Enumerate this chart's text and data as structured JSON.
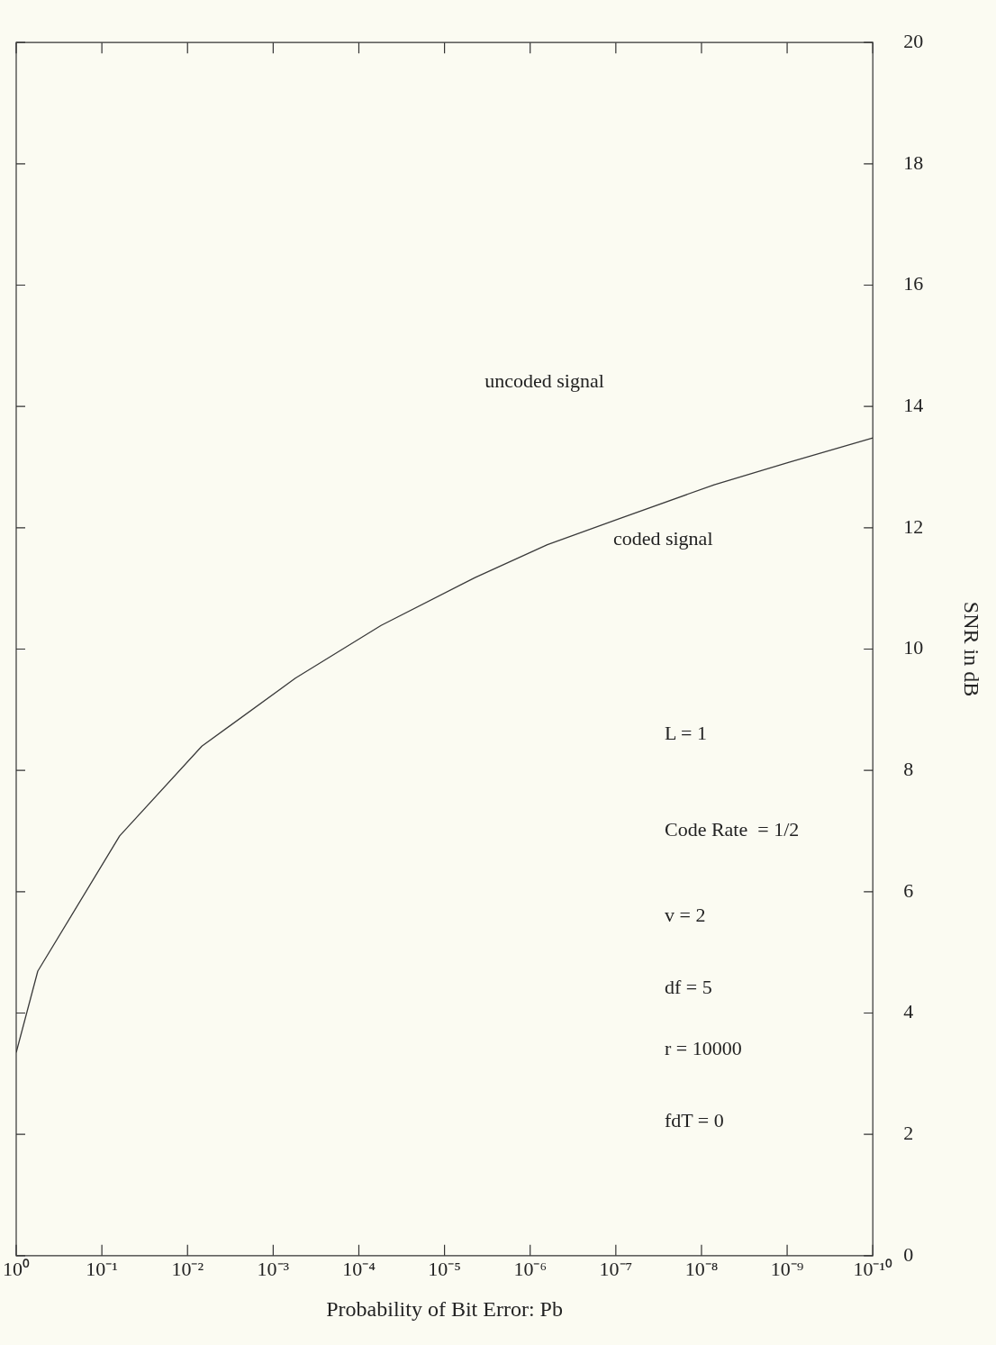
{
  "chart_data": {
    "type": "line",
    "xlabel": "Probability of Bit Error: Pb",
    "ylabel": "SNR in dB",
    "x": [
      1,
      0.56,
      0.062,
      0.0068,
      0.00055,
      5.5e-05,
      4.4e-06,
      6.3e-07,
      9.5e-08,
      7.1e-09,
      9.5e-10,
      1e-10
    ],
    "series": [
      {
        "color": "#3a3a3a",
        "values": [
          3.35,
          4.69,
          6.92,
          8.4,
          9.52,
          10.39,
          11.18,
          11.72,
          12.14,
          12.71,
          13.08,
          13.48
        ]
      }
    ],
    "log": "x",
    "xlim": [
      1,
      1e-10
    ],
    "xticks": [
      {
        "value": 1,
        "label": "10⁰"
      },
      {
        "value": 0.1,
        "label": "10⁻¹"
      },
      {
        "value": 0.01,
        "label": "10⁻²"
      },
      {
        "value": 0.001,
        "label": "10⁻³"
      },
      {
        "value": 0.0001,
        "label": "10⁻⁴"
      },
      {
        "value": 1e-05,
        "label": "10⁻⁵"
      },
      {
        "value": 1e-06,
        "label": "10⁻⁶"
      },
      {
        "value": 1e-07,
        "label": "10⁻⁷"
      },
      {
        "value": 1e-08,
        "label": "10⁻⁸"
      },
      {
        "value": 1e-09,
        "label": "10⁻⁹"
      },
      {
        "value": 1e-10,
        "label": "10⁻¹⁰"
      }
    ],
    "ylim": [
      0,
      20
    ],
    "yticks": [
      0,
      2,
      4,
      6,
      8,
      10,
      12,
      14,
      16,
      18,
      20
    ],
    "annotations": [
      "uncoded signal",
      "coded signal",
      "L = 1",
      "Code Rate  = 1/2",
      "v = 2",
      "df = 5",
      "r = 10000",
      "fdT = 0"
    ],
    "grid": false,
    "legend": false,
    "marker": "none",
    "line_style": "solid"
  }
}
